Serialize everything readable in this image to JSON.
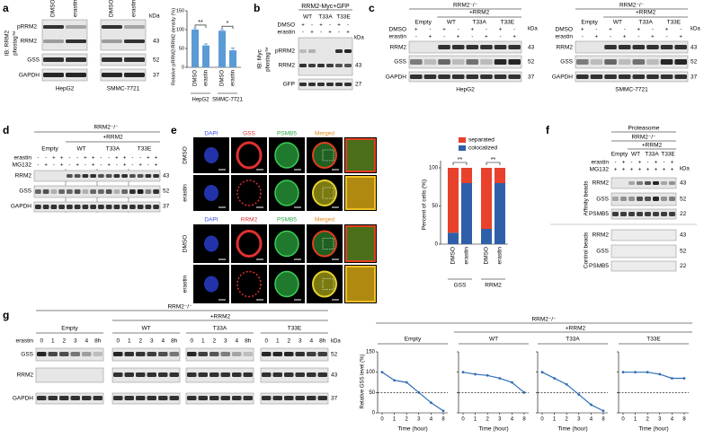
{
  "panel_labels": [
    "a",
    "b",
    "c",
    "d",
    "e",
    "f",
    "g"
  ],
  "a": {
    "ib": "IB: RRM2",
    "phostag": "phostag™",
    "bands": [
      "pRRM2",
      "RRM2"
    ],
    "rows": [
      "GSS",
      "GAPDH"
    ],
    "lanes": [
      "DMSO",
      "erastin"
    ],
    "kda": "kDa",
    "markers": [
      "43",
      "52",
      "37"
    ],
    "cells": [
      "HepG2",
      "SMMC-7721"
    ]
  },
  "b": {
    "title": "RRM2-Myc+GFP",
    "constructs": [
      "WT",
      "T33A",
      "T33E"
    ],
    "treat": [
      "DMSO",
      "erastin"
    ],
    "signs": [
      [
        "+",
        "-",
        "+",
        "-",
        "+",
        "-"
      ],
      [
        "-",
        "+",
        "-",
        "+",
        "-",
        "+"
      ]
    ],
    "ib": "IB: Myc",
    "phostag": "phostag™",
    "bands": [
      "pRRM2",
      "RRM2"
    ],
    "gfp": "GFP",
    "kda": "kDa",
    "markers": [
      "43",
      "27"
    ]
  },
  "c": {
    "ko": "RRM2⁻/⁻",
    "plus": "+RRM2",
    "constructs": [
      "Empty",
      "WT",
      "T33A",
      "T33E"
    ],
    "treat": [
      "DMSO",
      "erastin"
    ],
    "signs": [
      [
        "+",
        "-",
        "+",
        "-",
        "+",
        "-",
        "+",
        "-"
      ],
      [
        "-",
        "+",
        "-",
        "+",
        "-",
        "+",
        "-",
        "+"
      ]
    ],
    "rows": [
      "RRM2",
      "GSS",
      "GAPDH"
    ],
    "kda": "kDa",
    "markers": [
      "43",
      "52",
      "37"
    ],
    "cells": [
      "HepG2",
      "SMMC-7721"
    ]
  },
  "d": {
    "ko": "RRM2⁻/⁻",
    "plus": "+RRM2",
    "constructs": [
      "Empty",
      "WT",
      "T33A",
      "T33E"
    ],
    "treat": [
      "erastin",
      "MG132"
    ],
    "signs": [
      [
        "-",
        "-",
        "+",
        "+",
        "-",
        "-",
        "+",
        "+",
        "-",
        "-",
        "+",
        "+",
        "-",
        "-",
        "+",
        "+"
      ],
      [
        "-",
        "+",
        "-",
        "+",
        "-",
        "+",
        "-",
        "+",
        "-",
        "+",
        "-",
        "+",
        "-",
        "+",
        "-",
        "+"
      ]
    ],
    "rows": [
      "RRM2",
      "GSS",
      "GAPDH"
    ],
    "markers": [
      "43",
      "52",
      "37"
    ]
  },
  "e": {
    "stains_top": [
      "DAPI",
      "GSS",
      "PSMB5",
      "Merged"
    ],
    "stains_bottom": [
      "DAPI",
      "RRM2",
      "PSMB5",
      "Merged"
    ],
    "rows": [
      "DMSO",
      "erastin"
    ]
  },
  "f": {
    "title": "Proteasome",
    "ko": "RRM2⁻/⁻",
    "plus": "+RRM2",
    "constructs": [
      "Empty",
      "WT",
      "T33A",
      "T33E"
    ],
    "treat": [
      "erastin",
      "MG132"
    ],
    "signs": [
      [
        "-",
        "+",
        "-",
        "+",
        "-",
        "+",
        "-",
        "+"
      ],
      [
        "+",
        "+",
        "+",
        "+",
        "+",
        "+",
        "+",
        "+"
      ]
    ],
    "kda": "kDa",
    "blocks": [
      "Affinity beads",
      "Control beads"
    ],
    "rows": [
      "RRM2",
      "GSS",
      "PSMB5"
    ],
    "markers": [
      "43",
      "52",
      "22"
    ]
  },
  "g": {
    "ko": "RRM2⁻/⁻",
    "plus": "+RRM2",
    "groups": [
      "Empty",
      "WT",
      "T33A",
      "T33E"
    ],
    "treat": "erastin",
    "times": [
      "0",
      "1",
      "2",
      "3",
      "4",
      "8h"
    ],
    "rows": [
      "GSS",
      "RRM2",
      "GAPDH"
    ],
    "kda": "kDa",
    "markers": [
      "52",
      "43",
      "37"
    ]
  },
  "chart_data": [
    {
      "type": "bar",
      "ylabel": "Relative pRRM2/RRM2 density (%)",
      "categories": [
        "DMSO",
        "erastin",
        "DMSO",
        "erastin"
      ],
      "groups": [
        "HepG2",
        "SMMC-7721"
      ],
      "values": [
        100,
        58,
        97,
        45
      ],
      "errors": [
        3,
        4,
        3,
        6
      ],
      "color": "#5b9bd5",
      "ylim": [
        0,
        150
      ],
      "yticks": [
        0,
        50,
        100,
        150
      ],
      "significance": [
        "**",
        "*"
      ]
    },
    {
      "type": "stacked_bar",
      "ylabel": "Percent of cells (%)",
      "categories": [
        "DMSO",
        "erastin",
        "DMSO",
        "erastin"
      ],
      "groups": [
        "GSS",
        "RRM2"
      ],
      "series": [
        {
          "name": "separated",
          "color": "#e8412c",
          "values": [
            85,
            20,
            80,
            20
          ]
        },
        {
          "name": "colocalized",
          "color": "#2f5fa8",
          "values": [
            15,
            80,
            20,
            80
          ]
        }
      ],
      "ylim": [
        0,
        100
      ],
      "yticks": [
        0,
        50,
        100
      ],
      "significance": [
        "**",
        "**"
      ]
    },
    {
      "type": "line",
      "title": "RRM2⁻/⁻",
      "subtitle": "+RRM2",
      "ylabel": "Relative GSS level (%)",
      "xlabel": "Time (hour)",
      "categories": [
        "0",
        "1",
        "2",
        "3",
        "4",
        "8"
      ],
      "series": [
        {
          "name": "Empty",
          "color": "#2f6db5",
          "values": [
            100,
            80,
            75,
            50,
            25,
            5
          ]
        },
        {
          "name": "WT",
          "color": "#2f6db5",
          "values": [
            100,
            95,
            92,
            85,
            75,
            50
          ]
        },
        {
          "name": "T33A",
          "color": "#2f6db5",
          "values": [
            100,
            85,
            70,
            45,
            20,
            5
          ]
        },
        {
          "name": "T33E",
          "color": "#2f6db5",
          "values": [
            100,
            100,
            100,
            95,
            85,
            85
          ]
        }
      ],
      "ylim": [
        0,
        150
      ],
      "yticks": [
        0,
        50,
        100,
        150
      ],
      "reference_line": 50
    }
  ]
}
